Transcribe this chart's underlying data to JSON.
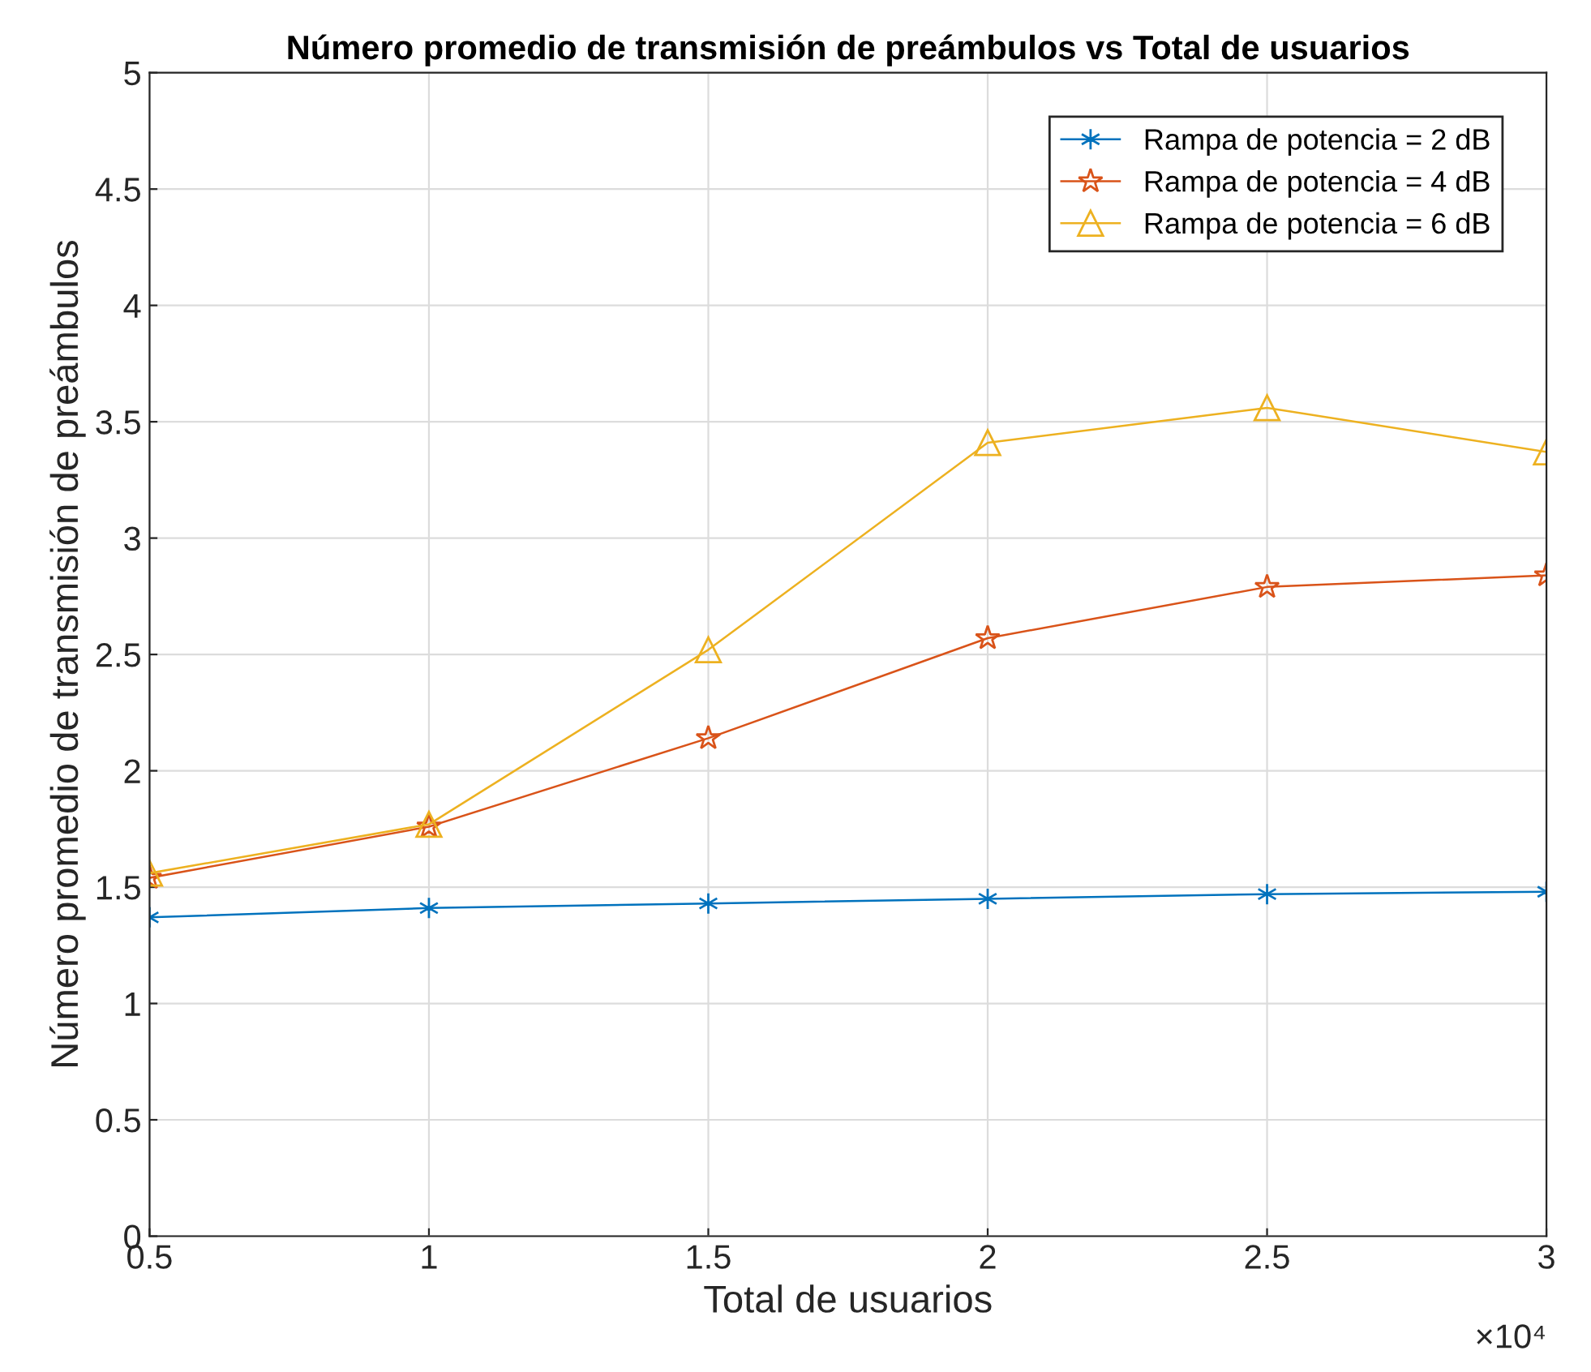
{
  "chart_data": {
    "type": "line",
    "title": "Número promedio de transmisión de preámbulos vs Total de usuarios",
    "xlabel": "Total de usuarios",
    "ylabel": "Número promedio de transmisión de preámbulos",
    "x": [
      0.5,
      1,
      1.5,
      2,
      2.5,
      3
    ],
    "series": [
      {
        "name": "Rampa de potencia = 2 dB",
        "color": "#0072bd",
        "marker": "cross",
        "values": [
          1.37,
          1.41,
          1.43,
          1.45,
          1.47,
          1.48
        ]
      },
      {
        "name": "Rampa de potencia = 4 dB",
        "color": "#d95319",
        "marker": "star",
        "values": [
          1.54,
          1.76,
          2.14,
          2.57,
          2.79,
          2.84
        ]
      },
      {
        "name": "Rampa de potencia = 6 dB",
        "color": "#edb120",
        "marker": "triangle",
        "values": [
          1.56,
          1.77,
          2.52,
          3.41,
          3.56,
          3.37
        ]
      }
    ],
    "xlim": [
      0.5,
      3
    ],
    "ylim": [
      0,
      5
    ],
    "xticks": [
      0.5,
      1,
      1.5,
      2,
      2.5,
      3
    ],
    "yticks": [
      0,
      0.5,
      1,
      1.5,
      2,
      2.5,
      3,
      3.5,
      4,
      4.5,
      5
    ],
    "annotations": [
      "×10⁴"
    ],
    "grid": true,
    "legend": "top right",
    "line_style": "solid"
  }
}
